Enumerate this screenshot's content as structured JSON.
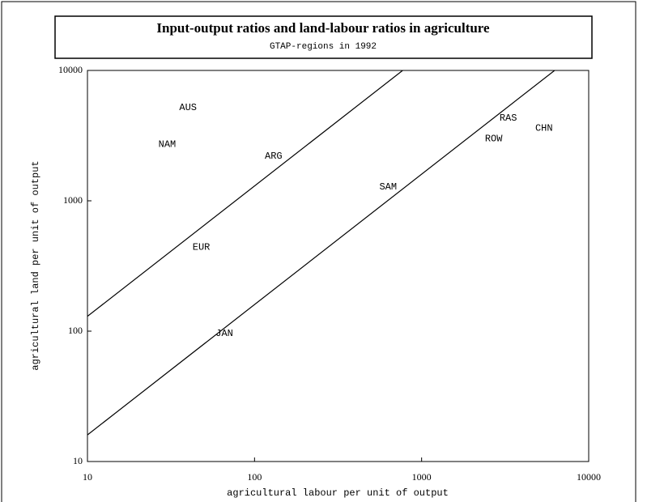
{
  "chart_data": {
    "type": "scatter",
    "title": "Input-output ratios and land-labour ratios in agriculture",
    "subtitle": "GTAP-regions in 1992",
    "x_label": "agricultural labour per unit of output",
    "y_label": "agricultural land per unit of output",
    "log_x": true,
    "log_y": true,
    "xlim": [
      10,
      10000
    ],
    "ylim": [
      10,
      10000
    ],
    "xticks": [
      10,
      100,
      1000,
      10000
    ],
    "yticks": [
      10,
      100,
      1000,
      10000
    ],
    "color": "#000000",
    "point_labels": [
      "AUS",
      "NAM",
      "ARG",
      "EUR",
      "JAN",
      "SAM",
      "RAS",
      "ROW",
      "CHN"
    ],
    "x": [
      40,
      30,
      130,
      48,
      66,
      630,
      3300,
      2700,
      5400
    ],
    "values": [
      5200,
      2700,
      2200,
      440,
      96,
      1280,
      4300,
      3000,
      3600
    ],
    "lines": [
      {
        "x": [
          10,
          770
        ],
        "values": [
          130,
          10000
        ]
      },
      {
        "x": [
          10,
          6250
        ],
        "values": [
          16,
          10000
        ]
      }
    ]
  }
}
